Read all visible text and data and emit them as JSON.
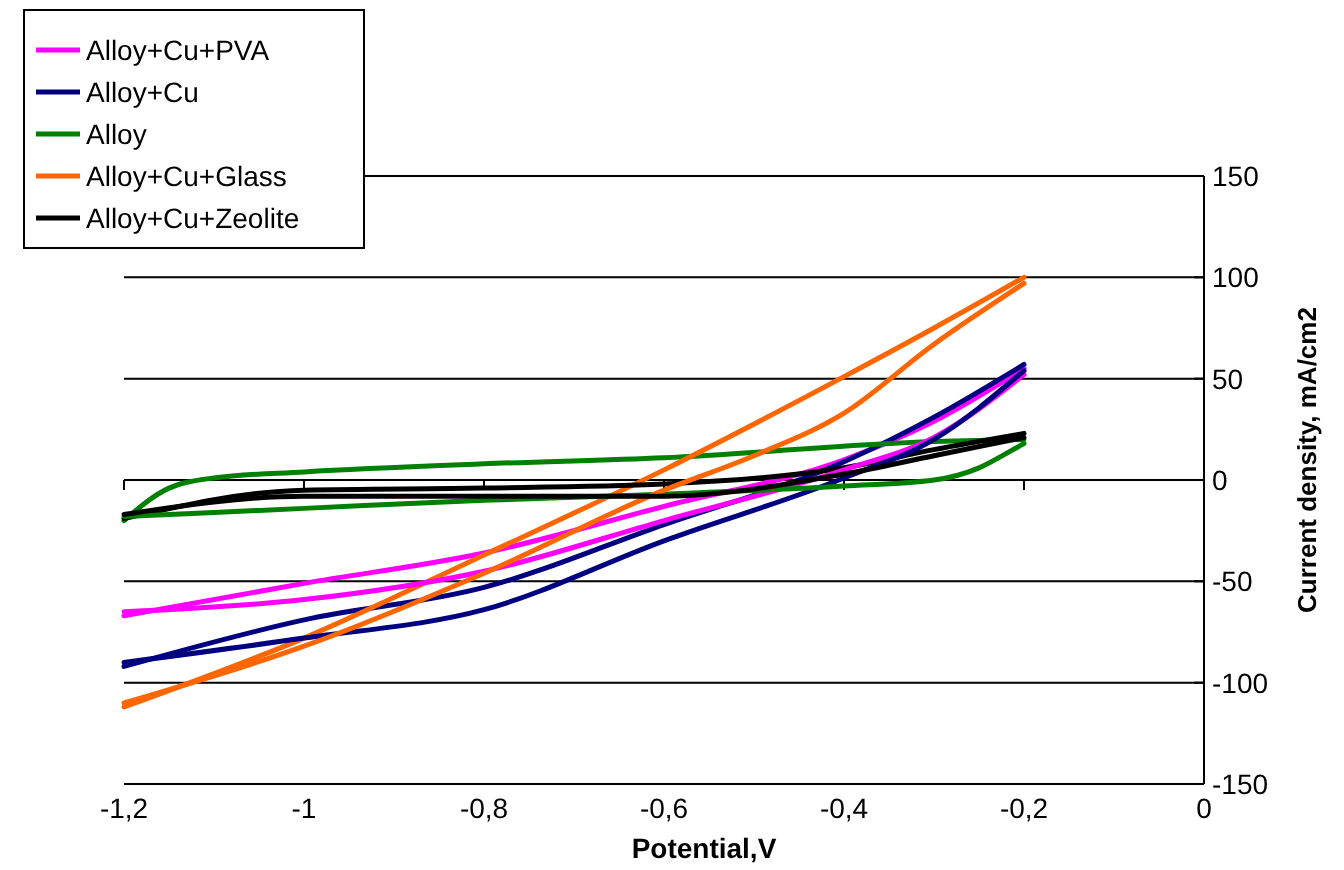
{
  "chart_data": {
    "type": "line",
    "xlabel": "Potential,V",
    "ylabel": "Current density, mA/cm2",
    "xlim": [
      -1.2,
      0
    ],
    "ylim": [
      -150,
      150
    ],
    "xticks": [
      {
        "value": -1.2,
        "label": "-1,2"
      },
      -1,
      {
        "value": -0.8,
        "label": "-0,8"
      },
      {
        "value": -0.6,
        "label": "-0,6"
      },
      {
        "value": -0.4,
        "label": "-0,4"
      },
      {
        "value": -0.2,
        "label": "-0,2"
      },
      0
    ],
    "yticks": [
      -150,
      -100,
      -50,
      0,
      50,
      100,
      150
    ],
    "grid": "y",
    "legend": "top left",
    "marker": "none",
    "line_style": "solid",
    "series": [
      {
        "name": "Alloy+Cu+PVA",
        "color": "#ff00ff",
        "x": [
          -1.2,
          -1.0,
          -0.8,
          -0.6,
          -0.4,
          -0.3,
          -0.2
        ],
        "values": [
          -67,
          -51,
          -36,
          -13,
          10,
          29,
          55
        ]
      },
      {
        "name": "Alloy+Cu",
        "color": "#000080",
        "x": [
          -1.2,
          -1.0,
          -0.8,
          -0.6,
          -0.4,
          -0.3,
          -0.2
        ],
        "values": [
          -92,
          -69,
          -53,
          -22,
          9,
          31,
          57
        ]
      },
      {
        "name": "Alloy",
        "color": "#008000",
        "x": [
          -1.2,
          -1.15,
          -1.1,
          -1.0,
          -0.8,
          -0.6,
          -0.3,
          -0.2
        ],
        "values": [
          -20,
          -4,
          1,
          4,
          8,
          11,
          19,
          20
        ]
      },
      {
        "name": "Alloy+Cu+Glass",
        "color": "#ff6600",
        "x": [
          -1.2,
          -1.0,
          -0.8,
          -0.6,
          -0.4,
          -0.3,
          -0.2
        ],
        "values": [
          -112,
          -78,
          -37,
          5,
          51,
          75,
          100
        ]
      },
      {
        "name": "Alloy+Cu+Zeolite",
        "color": "#000000",
        "x": [
          -1.2,
          -1.0,
          -0.8,
          -0.6,
          -0.4,
          -0.3,
          -0.2
        ],
        "values": [
          -19,
          -5,
          -4,
          -2,
          6,
          15,
          23
        ]
      },
      {
        "color": "#ff00ff",
        "x": [
          -1.2,
          -1.0,
          -0.8,
          -0.6,
          -0.4,
          -0.3,
          -0.2
        ],
        "values": [
          -65,
          -59,
          -45,
          -20,
          5,
          21,
          52
        ]
      },
      {
        "color": "#000080",
        "x": [
          -1.2,
          -1.0,
          -0.8,
          -0.6,
          -0.4,
          -0.3,
          -0.2
        ],
        "values": [
          -90,
          -78,
          -64,
          -30,
          1,
          20,
          54
        ]
      },
      {
        "color": "#008000",
        "x": [
          -1.2,
          -1.1,
          -1.0,
          -0.8,
          -0.6,
          -0.4,
          -0.3,
          -0.25,
          -0.22,
          -0.2
        ],
        "values": [
          -18,
          -16,
          -14,
          -10,
          -7,
          -3,
          0,
          6,
          13,
          18
        ]
      },
      {
        "color": "#ff6600",
        "x": [
          -1.2,
          -1.0,
          -0.8,
          -0.6,
          -0.5,
          -0.4,
          -0.3,
          -0.2
        ],
        "values": [
          -110,
          -82,
          -46,
          -5,
          12,
          33,
          67,
          97
        ]
      },
      {
        "color": "#000000",
        "x": [
          -1.2,
          -1.0,
          -0.8,
          -0.6,
          -0.4,
          -0.3,
          -0.2
        ],
        "values": [
          -17,
          -8,
          -8,
          -8,
          3,
          12,
          21
        ]
      }
    ]
  }
}
